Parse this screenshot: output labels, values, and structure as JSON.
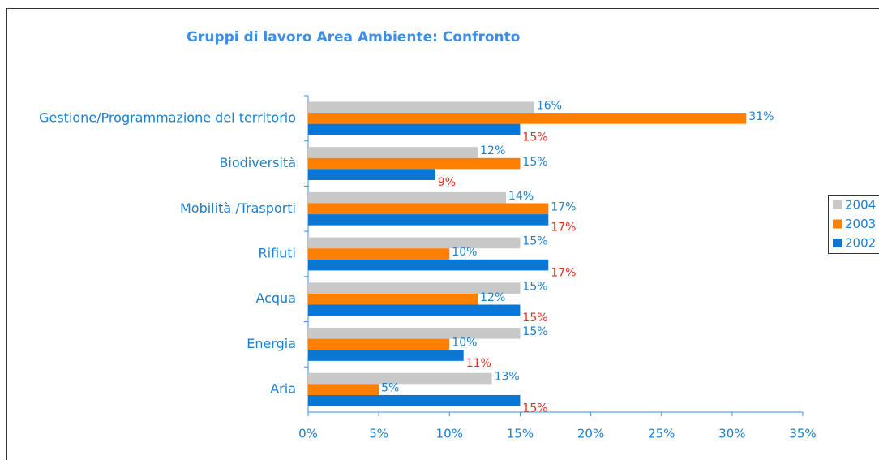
{
  "chart_data": {
    "type": "hbar",
    "title": "Gruppi di lavoro Area Ambiente: Confronto",
    "categories": [
      "Gestione/Programmazione del territorio",
      "Biodiversità",
      "Mobilità /Trasporti",
      "Rifiuti",
      "Acqua",
      "Energia",
      "Aria"
    ],
    "series": [
      {
        "name": "2004",
        "color": "#c8c8c8",
        "label_color": "#1a7fd0",
        "values": [
          16,
          12,
          14,
          15,
          15,
          15,
          13
        ],
        "value_labels": [
          "16%",
          "12%",
          "14%",
          "15%",
          "15%",
          "15%",
          "13%"
        ]
      },
      {
        "name": "2003",
        "color": "#ff7f00",
        "label_color": "#1a7fd0",
        "values": [
          31,
          15,
          17,
          10,
          12,
          10,
          5
        ],
        "value_labels": [
          "31%",
          "15%",
          "17%",
          "10%",
          "12%",
          "10%",
          "5%"
        ]
      },
      {
        "name": "2002",
        "color": "#0a77d5",
        "label_color": "#e03020",
        "values": [
          15,
          9,
          17,
          17,
          15,
          11,
          15
        ],
        "value_labels": [
          "15%",
          "9%",
          "17%",
          "17%",
          "15%",
          "11%",
          "15%"
        ]
      }
    ],
    "xlim": [
      0,
      35
    ],
    "xticks": [
      {
        "value": 0,
        "label": "0%"
      },
      {
        "value": 5,
        "label": "5%"
      },
      {
        "value": 10,
        "label": "10%"
      },
      {
        "value": 15,
        "label": "15%"
      },
      {
        "value": 20,
        "label": "20%"
      },
      {
        "value": 25,
        "label": "25%"
      },
      {
        "value": 30,
        "label": "30%"
      },
      {
        "value": 35,
        "label": "35%"
      }
    ],
    "legend": "right"
  }
}
